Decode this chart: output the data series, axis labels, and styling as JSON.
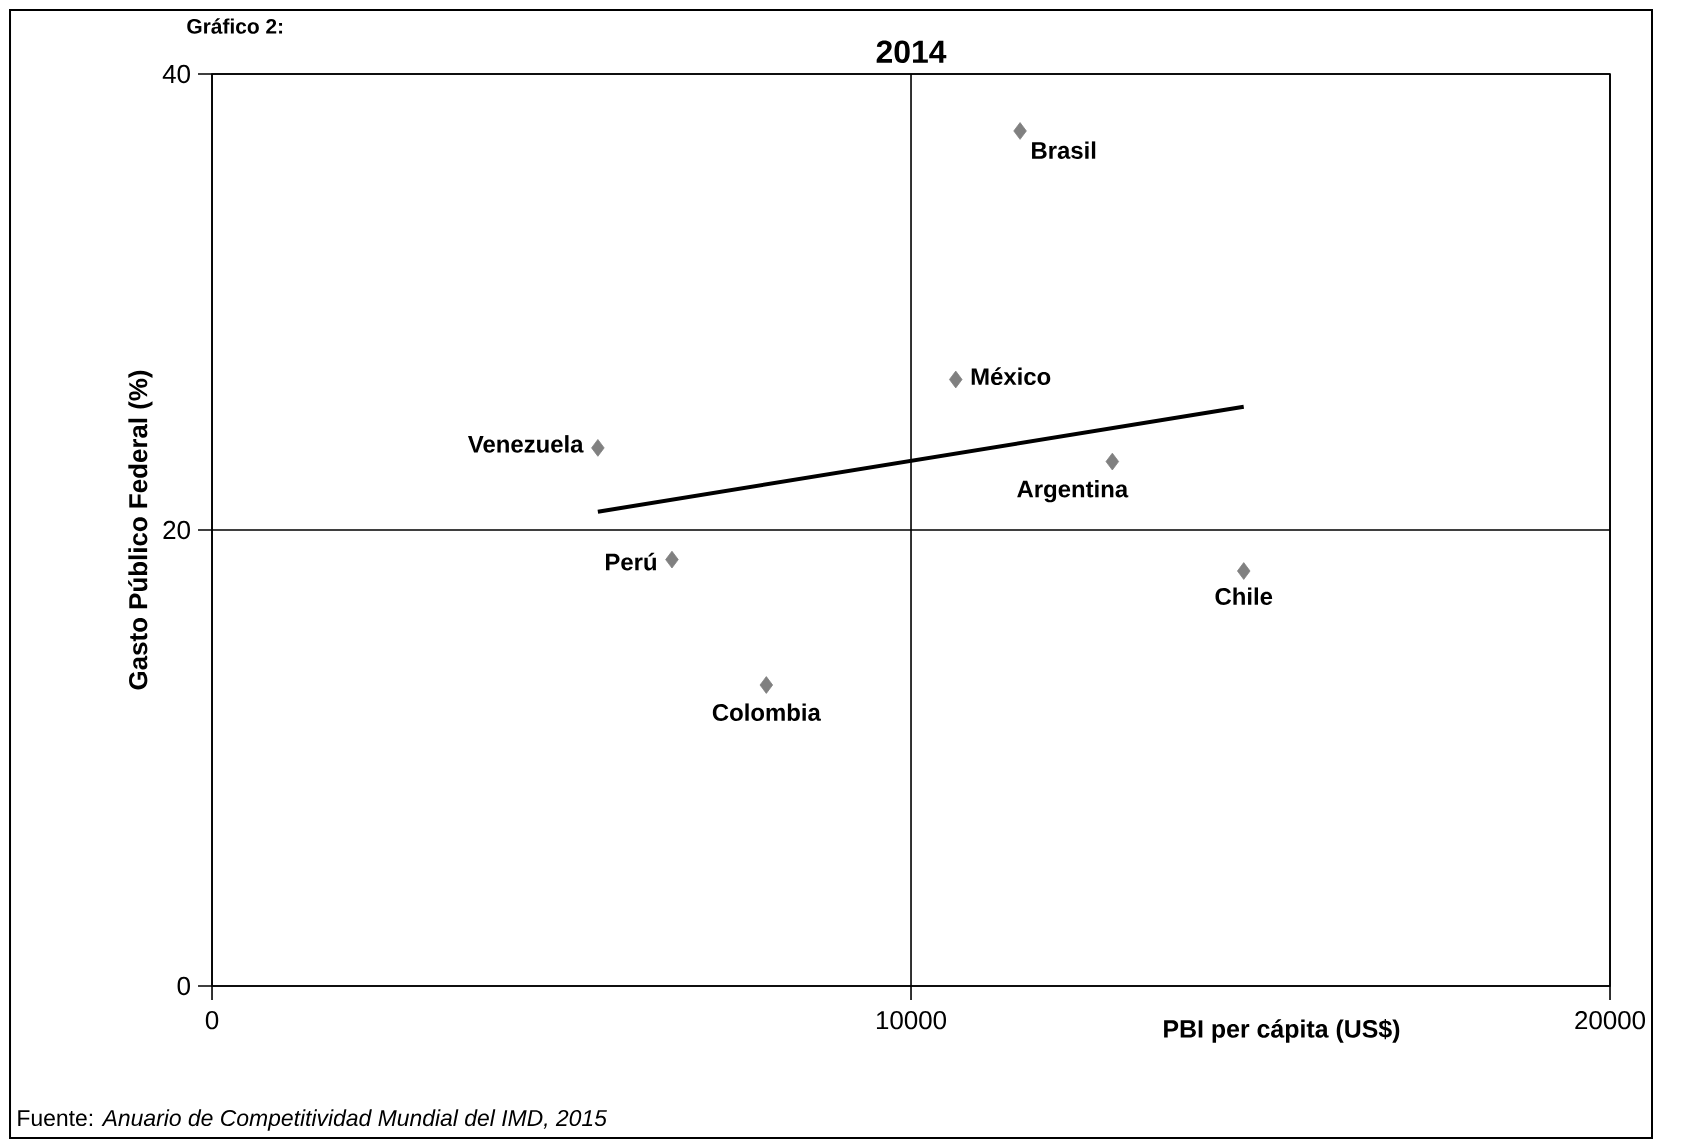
{
  "chart_data": {
    "type": "scatter",
    "title": "2014",
    "xlabel": "PBI per cápita (US$)",
    "ylabel": "Gasto Público Federal (%)",
    "xlim": [
      0,
      20000
    ],
    "ylim": [
      0,
      40
    ],
    "xticks": [
      0,
      10000,
      20000
    ],
    "yticks": [
      0,
      20,
      40
    ],
    "grid": true,
    "marker": "diamond",
    "series": [
      {
        "color": "#808080",
        "x": [
          11560,
          10640,
          5520,
          12880,
          6580,
          14760,
          7930
        ],
        "values": [
          37.5,
          26.6,
          23.6,
          23.0,
          18.7,
          18.2,
          13.2
        ]
      },
      {
        "type": "line",
        "color": "#000000",
        "marker": "none",
        "x": [
          5520,
          14760
        ],
        "values": [
          20.8,
          25.4
        ]
      }
    ],
    "annotations": [
      "Gráfico 2:",
      "Fuente: *Anuario de Competitividad Mundial del IMD, 2015*",
      {
        "text": "Brasil",
        "x": 11560,
        "y": 37.5
      },
      {
        "text": "México",
        "x": 10640,
        "y": 26.6
      },
      {
        "text": "Venezuela",
        "x": 5520,
        "y": 23.6
      },
      {
        "text": "Argentina",
        "x": 12880,
        "y": 23.0
      },
      {
        "text": "Perú",
        "x": 6580,
        "y": 18.7
      },
      {
        "text": "Chile",
        "x": 14760,
        "y": 18.2
      },
      {
        "text": "Colombia",
        "x": 7930,
        "y": 13.2
      }
    ]
  }
}
